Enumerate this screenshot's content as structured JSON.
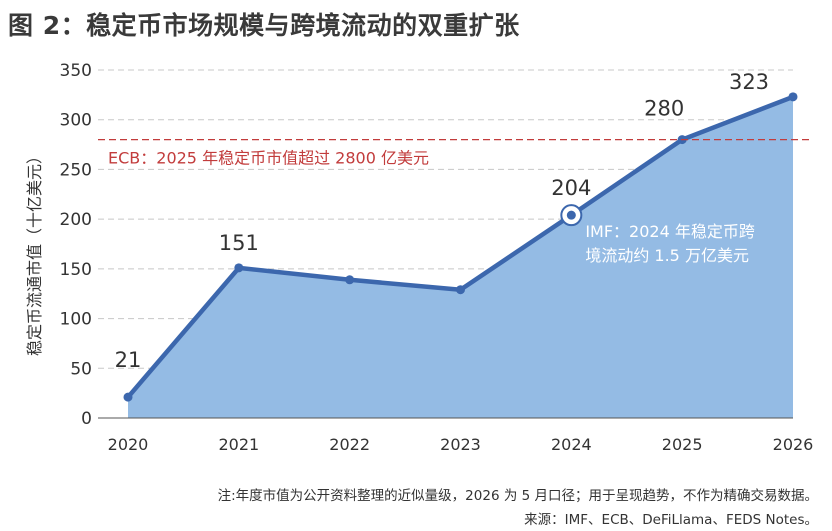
{
  "title": "图 2：稳定币市场规模与跨境流动的双重扩张",
  "chart_data": {
    "type": "area",
    "categories": [
      "2020",
      "2021",
      "2022",
      "2023",
      "2024",
      "2025",
      "2026"
    ],
    "values": [
      21,
      151,
      139,
      129,
      204,
      280,
      323
    ],
    "data_labels": [
      {
        "index": 0,
        "text": "21"
      },
      {
        "index": 1,
        "text": "151"
      },
      {
        "index": 4,
        "text": "204"
      },
      {
        "index": 5,
        "text": "280"
      },
      {
        "index": 6,
        "text": "323"
      }
    ],
    "ylabel": "稳定币流通市值（十亿美元）",
    "xlabel": "",
    "ylim": [
      0,
      350
    ],
    "yticks": [
      0,
      50,
      100,
      150,
      200,
      250,
      300,
      350
    ],
    "grid": true,
    "line_color": "#3c67ad",
    "fill_color": "#94bbe4",
    "reference_line": {
      "value": 280,
      "label": "ECB：2025 年稳定币市值超过 2800 亿美元",
      "color": "#c23c3c"
    },
    "annotation": {
      "index": 4,
      "lines": [
        "IMF：2024 年稳定币跨",
        "境流动约 1.5 万亿美元"
      ]
    }
  },
  "note": "注:年度市值为公开资料整理的近似量级，2026 为 5 月口径；用于呈现趋势，不作为精确交易数据。",
  "source": "来源：IMF、ECB、DeFiLlama、FEDS Notes。"
}
